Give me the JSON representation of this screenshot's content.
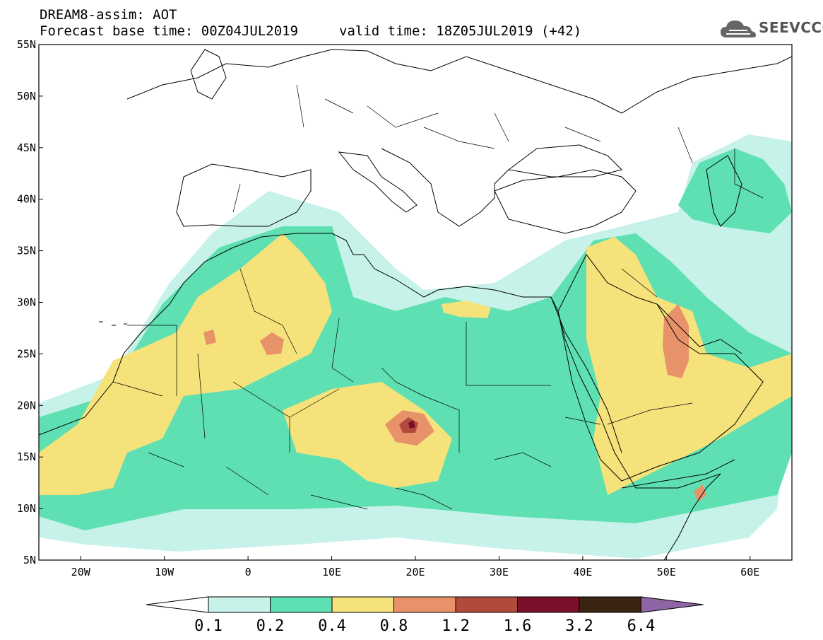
{
  "header": {
    "line1": "DREAM8-assim: AOT",
    "line2_base": "Forecast base time: 00Z04JUL2019",
    "line2_valid": "valid time: 18Z05JUL2019 (+42)"
  },
  "logo": {
    "text": "SEEVCCC",
    "color": "#555555"
  },
  "map": {
    "lon_range": [
      -25,
      65
    ],
    "lat_range": [
      5,
      55
    ],
    "lat_ticks": [
      "5N",
      "10N",
      "15N",
      "20N",
      "25N",
      "30N",
      "35N",
      "40N",
      "45N",
      "50N",
      "55N"
    ],
    "lon_ticks": [
      "20W",
      "10W",
      "0",
      "10E",
      "20E",
      "30E",
      "40E",
      "50E",
      "60E"
    ]
  },
  "colorbar": {
    "labels": [
      "0.1",
      "0.2",
      "0.4",
      "0.8",
      "1.2",
      "1.6",
      "3.2",
      "6.4"
    ],
    "colors": [
      "#c6f2ea",
      "#5ee0b2",
      "#f5e27a",
      "#e8926a",
      "#b24a3c",
      "#7a0f2a",
      "#3a2412",
      "#8e66a6"
    ],
    "below_color": "#ffffff"
  }
}
